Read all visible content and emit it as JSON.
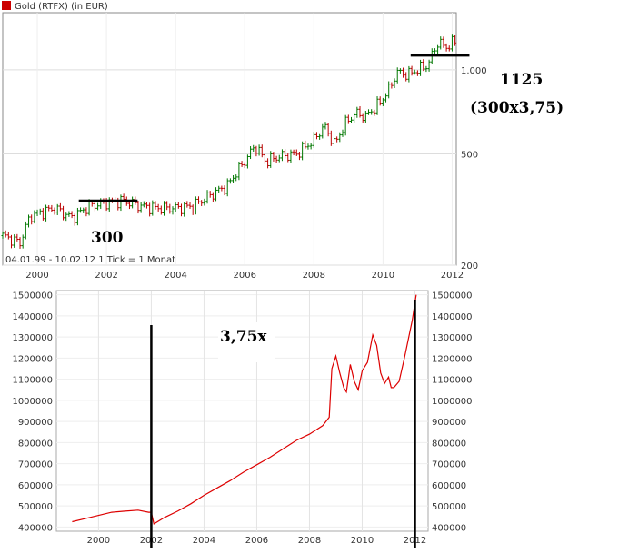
{
  "chart_data": [
    {
      "type": "bar",
      "style": "ohlc-monthly",
      "title": "Gold (RTFX) (in EUR)",
      "legend_color": "#cc0000",
      "up_color": "#007700",
      "down_color": "#bb0000",
      "y_scale": "log",
      "ylim": [
        200,
        1600
      ],
      "yticks": [
        200,
        500,
        1000
      ],
      "ytick_labels": [
        "200",
        "500",
        "1.000"
      ],
      "xlim": [
        1999.0,
        2012.12
      ],
      "xticks": [
        2000,
        2002,
        2004,
        2006,
        2008,
        2010,
        2012
      ],
      "xtick_labels": [
        "2000",
        "2002",
        "2004",
        "2006",
        "2008",
        "2010",
        "2012"
      ],
      "footer": "04.01.99 - 10.02.12   1 Tick = 1 Monat",
      "close_series": {
        "x": [
          1999.0,
          1999.5,
          1999.8,
          2000.0,
          2000.5,
          2001.0,
          2001.5,
          2002.0,
          2002.5,
          2003.0,
          2003.5,
          2004.0,
          2004.5,
          2005.0,
          2005.5,
          2006.0,
          2006.3,
          2006.6,
          2007.0,
          2007.5,
          2008.0,
          2008.3,
          2008.6,
          2008.9,
          2009.2,
          2009.5,
          2009.9,
          2010.2,
          2010.4,
          2010.7,
          2011.0,
          2011.3,
          2011.6,
          2011.8,
          2012.1
        ],
        "values": [
          255,
          240,
          300,
          305,
          320,
          295,
          325,
          335,
          340,
          325,
          320,
          320,
          325,
          355,
          385,
          470,
          535,
          470,
          490,
          500,
          560,
          630,
          540,
          640,
          700,
          680,
          760,
          860,
          980,
          960,
          1000,
          1040,
          1260,
          1200,
          1270
        ]
      },
      "annotations": [
        {
          "text": "300",
          "level": 340,
          "x_from": 2001.2,
          "x_to": 2002.9
        },
        {
          "text": "1125",
          "level": 1125,
          "x_from": 2010.8,
          "x_to": 2012.5
        },
        {
          "text": "(300x3,75)"
        }
      ]
    },
    {
      "type": "line",
      "color": "#dd0000",
      "ylim": [
        380000,
        1520000
      ],
      "yticks": [
        400000,
        500000,
        600000,
        700000,
        800000,
        900000,
        1000000,
        1100000,
        1200000,
        1300000,
        1400000,
        1500000
      ],
      "ytick_labels": [
        "400000",
        "500000",
        "600000",
        "700000",
        "800000",
        "900000",
        "1000000",
        "1100000",
        "1200000",
        "1300000",
        "1400000",
        "1500000"
      ],
      "xlim": [
        1998.4,
        2012.5
      ],
      "xticks": [
        2000,
        2002,
        2004,
        2006,
        2008,
        2010,
        2012
      ],
      "xtick_labels": [
        "2000",
        "2002",
        "2004",
        "2006",
        "2008",
        "2010",
        "2012"
      ],
      "x": [
        1999.0,
        1999.5,
        2000.0,
        2000.5,
        2001.0,
        2001.5,
        2001.9,
        2002.0,
        2002.1,
        2002.5,
        2003.0,
        2003.5,
        2004.0,
        2004.5,
        2005.0,
        2005.5,
        2006.0,
        2006.5,
        2007.0,
        2007.5,
        2008.0,
        2008.5,
        2008.75,
        2008.85,
        2009.0,
        2009.15,
        2009.3,
        2009.4,
        2009.55,
        2009.7,
        2009.85,
        2010.0,
        2010.2,
        2010.4,
        2010.55,
        2010.7,
        2010.85,
        2011.0,
        2011.1,
        2011.2,
        2011.4,
        2011.6,
        2011.8,
        2011.9,
        2012.05
      ],
      "values": [
        425000,
        440000,
        455000,
        470000,
        475000,
        480000,
        470000,
        470000,
        415000,
        445000,
        475000,
        510000,
        550000,
        585000,
        620000,
        660000,
        695000,
        730000,
        770000,
        810000,
        840000,
        880000,
        920000,
        1150000,
        1210000,
        1130000,
        1060000,
        1040000,
        1170000,
        1090000,
        1050000,
        1140000,
        1180000,
        1310000,
        1260000,
        1130000,
        1080000,
        1110000,
        1060000,
        1060000,
        1090000,
        1200000,
        1320000,
        1380000,
        1500000
      ],
      "markers": [
        {
          "x": 2002.0
        },
        {
          "x": 2012.0
        }
      ],
      "annotation": "3,75x"
    }
  ]
}
